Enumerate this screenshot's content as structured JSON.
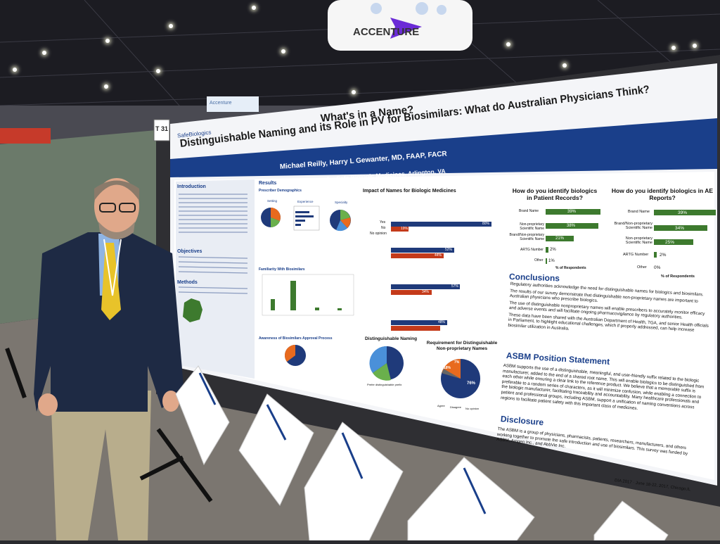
{
  "banner": {
    "brand": "ACCENTURE",
    "small_sign": "Accenture"
  },
  "booth": {
    "number": "T 31"
  },
  "poster": {
    "logo": "SafeBiologics",
    "title_line1": "What's in a Name?",
    "title_line2": "Distinguishable Naming and its Role in PV for Biosimilars: What do Australian Physicians Think?",
    "authors": "Michael Reilly, Harry L Gewanter, MD, FAAP, FACR",
    "affiliation": "Alliance for Safe Biologic Medicines, Arlington, VA",
    "sections": {
      "introduction": "Introduction",
      "results": "Results",
      "objectives": "Objectives",
      "methods": "Methods",
      "prescriber_demographics": "Prescriber Demographics",
      "familiarity": "Familiarity With Biosimilars",
      "awareness": "Awareness of Biosimilars Approval Process",
      "impact": "Impact of Names for Biologic Medicines",
      "distinguishable_naming": "Distinguishable Naming",
      "requirement": "Requirement for Distinguishable Non-proprietary Names",
      "patient_records_q": "How do you identify biologics in Patient Records?",
      "ae_reports_q": "How do you identify biologics in AE Reports?",
      "conclusions": "Conclusions",
      "asbm_position": "ASBM Position Statement",
      "disclosure": "Disclosure"
    },
    "demographics_labels": [
      "Setting",
      "Experience",
      "Specialty"
    ],
    "impact_yes_no": {
      "yes": "Yes",
      "no": "No",
      "no_opinion": "No opinion"
    },
    "impact_values": [
      {
        "yes": "80%",
        "no": "19%"
      },
      {
        "yes": "52%",
        "no": "44%"
      },
      {
        "yes": "57%",
        "no": "34%"
      },
      {
        "yes": "48%",
        "no": "41%"
      }
    ],
    "requirement_pie": {
      "values": [
        76,
        18,
        7
      ],
      "labels": [
        "76%",
        "18%",
        "7%"
      ],
      "legend": [
        "Agree",
        "Disagree",
        "No opinion"
      ]
    },
    "patient_records_bars": [
      {
        "label": "Brand Name",
        "value": "39%"
      },
      {
        "label": "Non-proprietary Scientific Name",
        "value": "38%"
      },
      {
        "label": "Brand/Non-proprietary Scientific Name",
        "value": "21%"
      },
      {
        "label": "ARTG Number",
        "value": "2%"
      },
      {
        "label": "Other",
        "value": "1%"
      }
    ],
    "patient_records_axis": "% of Respondents",
    "ae_reports_bars": [
      {
        "label": "Brand Name",
        "value": "39%"
      },
      {
        "label": "Brand/Non-proprietary Scientific Name",
        "value": "34%"
      },
      {
        "label": "Non-proprietary Scientific Name",
        "value": "25%"
      },
      {
        "label": "ARTG Number",
        "value": "2%"
      },
      {
        "label": "Other",
        "value": "0%"
      }
    ],
    "ae_reports_axis": "% of Respondents",
    "conclusions_bullets": [
      "Regulatory authorities acknowledge the need for distinguishable names for biologics and biosimilars.",
      "The results of our survey demonstrate that distinguishable non-proprietary names are important to Australian physicians who prescribe biologics.",
      "The use of distinguishable nonproprietary names will enable prescribers to accurately monitor efficacy and adverse events and will facilitate ongoing pharmacovigilance by regulatory authorities.",
      "These data have been shared with the Australian Department of Health, TGA, and senior Health officials in Parliament, to highlight educational challenges, which if properly addressed, can help increase biosimilar utilization in Australia."
    ],
    "asbm_text": "ASBM supports the use of a distinguishable, meaningful, and user-friendly suffix related to the biologic manufacturer, added to the end of a shared root name. This will enable biologics to be distinguished from each other while ensuring a clear link to the reference product. We believe that a memorable suffix is preferable to a random series of characters, as it will minimize confusion, while enabling a connection to the biologic manufacturer, facilitating traceability and accountability. Many healthcare professionals and patient and professional groups, including ASBM, support a unification of naming conventions across regions to facilitate patient safety with this important class of medicines.",
    "disclosure_text": "The ASBM is a group of physicians, pharmacists, patients, researchers, manufacturers, and others working together to promote the safe introduction and use of biosimilars. This survey was funded by ASBM, Amgen Inc., and AbbVie Inc.",
    "footer": "DIA 2017 · June 18-22, 2017, Chicago,IL",
    "distinguishable_caption": "Prefer distinguishable prefix"
  },
  "colors": {
    "poster_blue": "#1a3f8a",
    "bar_green": "#3d7a2e",
    "bar_red": "#c43a1a",
    "bar_navy": "#1f3a7a",
    "pie_green": "#6ab04c",
    "pie_orange": "#e86a1e"
  },
  "scene_objects": [
    "presenter",
    "handout-sheets",
    "easel-stand",
    "exhibition-ceiling-lights"
  ]
}
